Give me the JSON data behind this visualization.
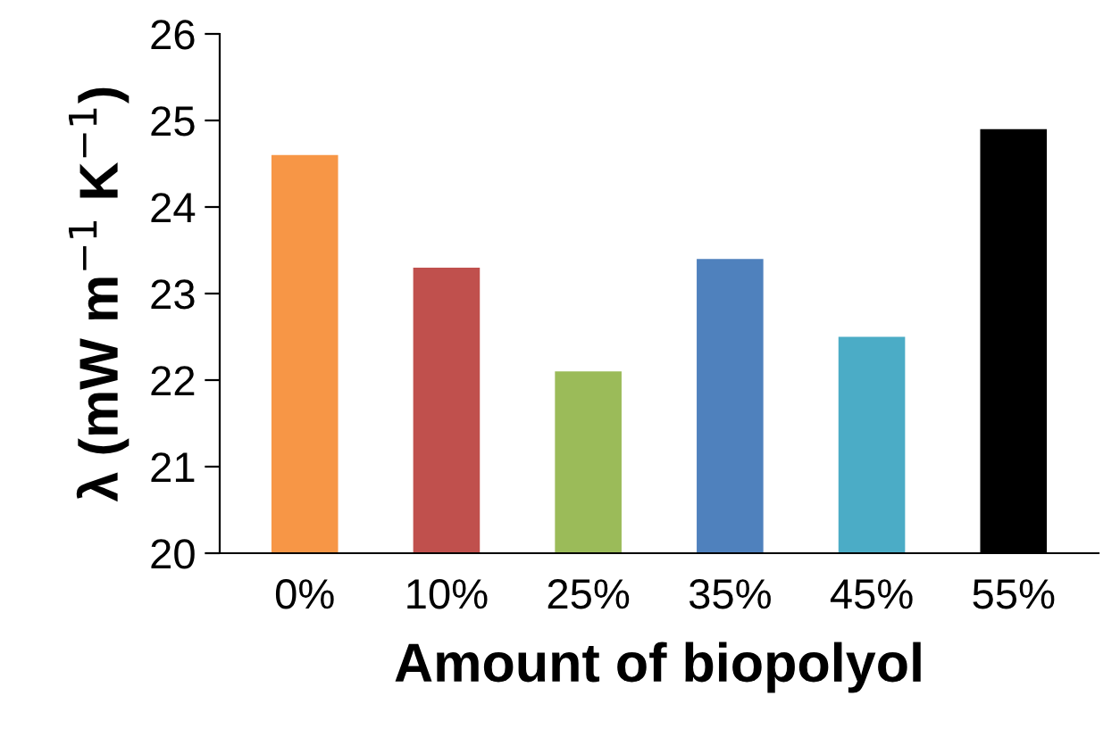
{
  "chart_data": {
    "type": "bar",
    "xlabel": "Amount of biopolyol",
    "ylabel": "λ (mW m$^{−1}$ K$^{−1}$)",
    "categories": [
      "0%",
      "10%",
      "25%",
      "35%",
      "45%",
      "55%"
    ],
    "values": [
      24.6,
      23.3,
      22.1,
      23.4,
      22.5,
      24.9
    ],
    "colors": [
      "#f79646",
      "#c0504d",
      "#9bbb59",
      "#4f81bd",
      "#4bacc6",
      "#000000"
    ],
    "ylim": [
      20,
      26
    ],
    "yticks": [
      20,
      21,
      22,
      23,
      24,
      25,
      26
    ],
    "grid": false,
    "legend": false
  }
}
